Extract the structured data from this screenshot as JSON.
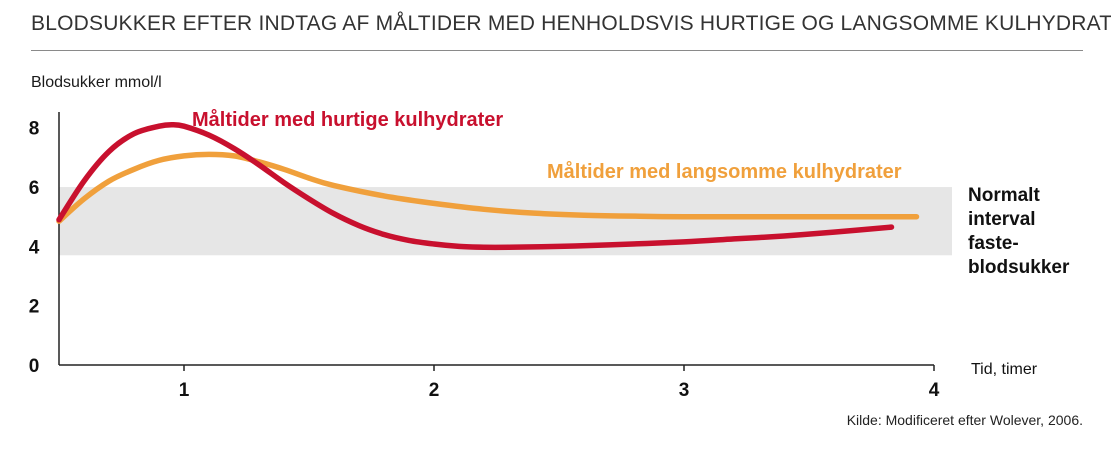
{
  "chart_data": {
    "type": "line",
    "title": "BLODSUKKER EFTER INDTAG AF MÅLTIDER MED HENHOLDSVIS HURTIGE OG LANGSOMME KULHYDRATER",
    "ylabel": "Blodsukker mmol/l",
    "xlabel": "Tid, timer",
    "xlim": [
      0.5,
      4
    ],
    "ylim": [
      0,
      8.8
    ],
    "xticks": [
      "1",
      "2",
      "3",
      "4"
    ],
    "yticks": [
      "0",
      "2",
      "4",
      "6",
      "8"
    ],
    "grid": false,
    "band": {
      "from": 3.7,
      "to": 6.0,
      "label": [
        "Normalt",
        "interval",
        "faste-",
        "blodsukker"
      ],
      "color": "#e6e6e6"
    },
    "series": [
      {
        "name": "Måltider med hurtige kulhydrater",
        "color": "#c8102e",
        "x": [
          0.5,
          0.6,
          0.7,
          0.8,
          0.9,
          0.95,
          1.0,
          1.1,
          1.2,
          1.3,
          1.4,
          1.5,
          1.6,
          1.7,
          1.8,
          1.9,
          2.0,
          2.1,
          2.2,
          2.3,
          2.5,
          2.7,
          3.0,
          3.2,
          3.4,
          3.6,
          3.83
        ],
        "values": [
          4.9,
          6.2,
          7.2,
          7.8,
          8.05,
          8.1,
          8.05,
          7.75,
          7.3,
          6.75,
          6.15,
          5.6,
          5.1,
          4.7,
          4.4,
          4.2,
          4.08,
          4.0,
          3.97,
          3.97,
          4.0,
          4.05,
          4.15,
          4.25,
          4.35,
          4.48,
          4.65
        ]
      },
      {
        "name": "Måltider med langsomme kulhydrater",
        "color": "#f0a03c",
        "x": [
          0.5,
          0.6,
          0.7,
          0.8,
          0.9,
          1.0,
          1.1,
          1.2,
          1.3,
          1.4,
          1.5,
          1.6,
          1.8,
          2.0,
          2.2,
          2.4,
          2.6,
          2.8,
          3.0,
          3.4,
          3.93
        ],
        "values": [
          4.85,
          5.6,
          6.2,
          6.6,
          6.9,
          7.05,
          7.1,
          7.05,
          6.85,
          6.6,
          6.3,
          6.05,
          5.7,
          5.45,
          5.25,
          5.12,
          5.05,
          5.02,
          5.0,
          5.0,
          5.0
        ]
      }
    ]
  },
  "source": "Kilde: Modificeret efter Wolever, 2006."
}
